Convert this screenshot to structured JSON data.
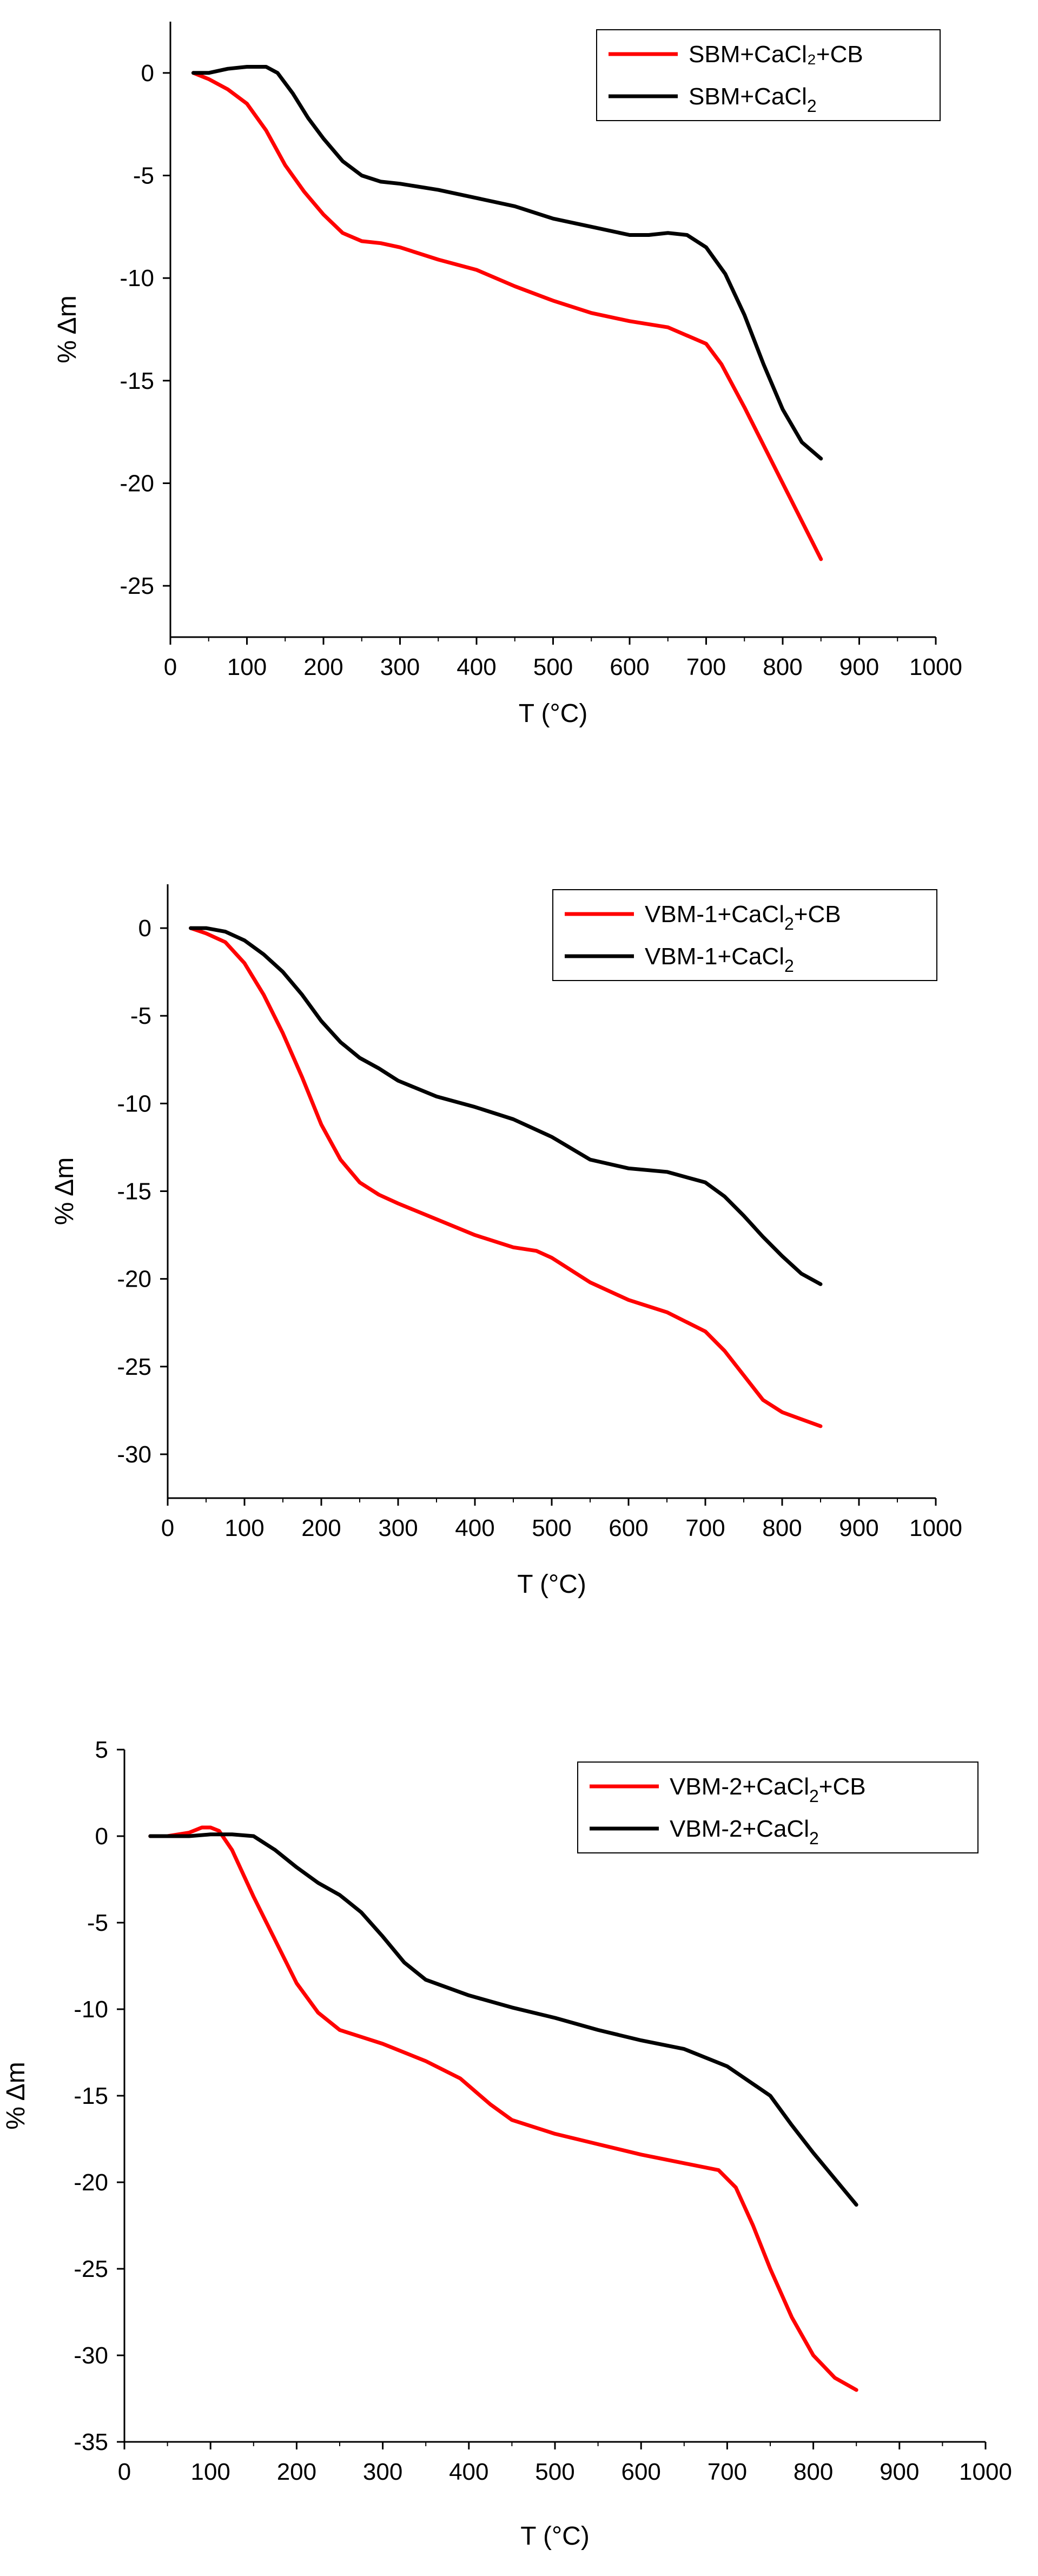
{
  "figure": {
    "panels": 3,
    "colors": {
      "red_series": "#ff0000",
      "black_series": "#000000"
    }
  },
  "chart_data": [
    {
      "type": "line",
      "title": "",
      "xlabel": "T (°C)",
      "ylabel": "% Δm",
      "xlim": [
        0,
        1000
      ],
      "ylim": [
        -27.5,
        2.5
      ],
      "xticks": [
        0,
        100,
        200,
        300,
        400,
        500,
        600,
        700,
        800,
        900,
        1000
      ],
      "xtick_labels": [
        "0",
        "100",
        "200",
        "300",
        "400",
        "500",
        "600",
        "700",
        "800",
        "900",
        "1000"
      ],
      "yticks": [
        0,
        -5,
        -10,
        -15,
        -20,
        -25
      ],
      "ytick_labels": [
        "0",
        "-5",
        "-10",
        "-15",
        "-20",
        "-25"
      ],
      "legend_position": "top-right",
      "grid": false,
      "series": [
        {
          "name": "SBM+CaCl₂+CB",
          "legend_main": "SBM+CaCl₂+CB",
          "legend_sub": "",
          "legend_tail": "",
          "color": "#ff0000",
          "x": [
            30,
            50,
            75,
            100,
            125,
            150,
            175,
            200,
            225,
            250,
            275,
            300,
            350,
            400,
            450,
            500,
            550,
            600,
            650,
            700,
            720,
            750,
            800,
            850
          ],
          "y": [
            0,
            -0.3,
            -0.8,
            -1.5,
            -2.8,
            -4.5,
            -5.8,
            -6.9,
            -7.8,
            -8.2,
            -8.3,
            -8.5,
            -9.1,
            -9.6,
            -10.4,
            -11.1,
            -11.7,
            -12.1,
            -12.4,
            -13.2,
            -14.2,
            -16.3,
            -20.0,
            -23.7
          ]
        },
        {
          "name": "SBM+CaCl2",
          "legend_main": "SBM+CaCl",
          "legend_sub": "2",
          "legend_tail": "",
          "color": "#000000",
          "x": [
            30,
            50,
            75,
            100,
            125,
            140,
            160,
            180,
            200,
            225,
            250,
            275,
            300,
            350,
            400,
            450,
            500,
            550,
            600,
            625,
            650,
            675,
            700,
            725,
            750,
            775,
            800,
            825,
            850
          ],
          "y": [
            0,
            0.0,
            0.2,
            0.3,
            0.3,
            0.0,
            -1.0,
            -2.2,
            -3.2,
            -4.3,
            -5.0,
            -5.3,
            -5.4,
            -5.7,
            -6.1,
            -6.5,
            -7.1,
            -7.5,
            -7.9,
            -7.9,
            -7.8,
            -7.9,
            -8.5,
            -9.8,
            -11.8,
            -14.2,
            -16.4,
            -18.0,
            -18.8
          ]
        }
      ]
    },
    {
      "type": "line",
      "title": "",
      "xlabel": "T (°C)",
      "ylabel": "% Δm",
      "xlim": [
        0,
        1000
      ],
      "ylim": [
        -32.5,
        2.5
      ],
      "xticks": [
        0,
        100,
        200,
        300,
        400,
        500,
        600,
        700,
        800,
        900,
        1000
      ],
      "xtick_labels": [
        "0",
        "100",
        "200",
        "300",
        "400",
        "500",
        "600",
        "700",
        "800",
        "900",
        "1000"
      ],
      "yticks": [
        0,
        -5,
        -10,
        -15,
        -20,
        -25,
        -30
      ],
      "ytick_labels": [
        "0",
        "-5",
        "-10",
        "-15",
        "-20",
        "-25",
        "-30"
      ],
      "legend_position": "top-right",
      "grid": false,
      "series": [
        {
          "name": "VBM-1+CaCl2+CB",
          "legend_main": "VBM-1+CaCl",
          "legend_sub": "2",
          "legend_tail": "+CB",
          "color": "#ff0000",
          "x": [
            30,
            50,
            75,
            100,
            125,
            150,
            175,
            200,
            225,
            250,
            275,
            300,
            350,
            400,
            450,
            480,
            500,
            550,
            600,
            650,
            700,
            725,
            750,
            775,
            800,
            825,
            850
          ],
          "y": [
            0,
            -0.3,
            -0.8,
            -2.0,
            -3.8,
            -6.0,
            -8.5,
            -11.2,
            -13.2,
            -14.5,
            -15.2,
            -15.7,
            -16.6,
            -17.5,
            -18.2,
            -18.4,
            -18.8,
            -20.2,
            -21.2,
            -21.9,
            -23.0,
            -24.1,
            -25.5,
            -26.9,
            -27.6,
            -28.0,
            -28.4
          ]
        },
        {
          "name": "VBM-1+CaCl2",
          "legend_main": "VBM-1+CaCl",
          "legend_sub": "2",
          "legend_tail": "",
          "color": "#000000",
          "x": [
            30,
            50,
            75,
            100,
            125,
            150,
            175,
            200,
            225,
            250,
            275,
            300,
            350,
            400,
            450,
            500,
            550,
            600,
            650,
            700,
            725,
            750,
            775,
            800,
            825,
            850
          ],
          "y": [
            0,
            0.0,
            -0.2,
            -0.7,
            -1.5,
            -2.5,
            -3.8,
            -5.3,
            -6.5,
            -7.4,
            -8.0,
            -8.7,
            -9.6,
            -10.2,
            -10.9,
            -11.9,
            -13.2,
            -13.7,
            -13.9,
            -14.5,
            -15.3,
            -16.4,
            -17.6,
            -18.7,
            -19.7,
            -20.3
          ]
        }
      ]
    },
    {
      "type": "line",
      "title": "",
      "xlabel": "T (°C)",
      "ylabel": "% Δm",
      "xlim": [
        0,
        1000
      ],
      "ylim": [
        -35,
        5
      ],
      "xticks": [
        0,
        100,
        200,
        300,
        400,
        500,
        600,
        700,
        800,
        900,
        1000
      ],
      "xtick_labels": [
        "0",
        "100",
        "200",
        "300",
        "400",
        "500",
        "600",
        "700",
        "800",
        "900",
        "1000"
      ],
      "yticks": [
        5,
        0,
        -5,
        -10,
        -15,
        -20,
        -25,
        -30,
        -35
      ],
      "ytick_labels": [
        "5",
        "0",
        "-5",
        "-10",
        "-15",
        "-20",
        "-25",
        "-30",
        "-35"
      ],
      "legend_position": "top-right",
      "grid": false,
      "series": [
        {
          "name": "VBM-2+CaCl2+CB",
          "legend_main": "VBM-2+CaCl",
          "legend_sub": "2",
          "legend_tail": "+CB",
          "color": "#ff0000",
          "x": [
            30,
            50,
            75,
            90,
            100,
            110,
            125,
            150,
            175,
            200,
            225,
            250,
            275,
            300,
            350,
            390,
            425,
            450,
            500,
            550,
            600,
            650,
            690,
            710,
            730,
            750,
            775,
            800,
            825,
            850
          ],
          "y": [
            0,
            0.0,
            0.2,
            0.5,
            0.5,
            0.3,
            -0.8,
            -3.5,
            -6.0,
            -8.5,
            -10.2,
            -11.2,
            -11.6,
            -12.0,
            -13.0,
            -14.0,
            -15.5,
            -16.4,
            -17.2,
            -17.8,
            -18.4,
            -18.9,
            -19.3,
            -20.3,
            -22.5,
            -25.0,
            -27.8,
            -30.0,
            -31.3,
            -32.0
          ]
        },
        {
          "name": "VBM-2+CaCl2",
          "legend_main": "VBM-2+CaCl",
          "legend_sub": "2",
          "legend_tail": "",
          "color": "#000000",
          "x": [
            30,
            50,
            75,
            100,
            125,
            150,
            175,
            200,
            225,
            250,
            275,
            300,
            325,
            350,
            400,
            450,
            500,
            550,
            600,
            650,
            700,
            750,
            775,
            800,
            825,
            850
          ],
          "y": [
            0,
            0.0,
            0.0,
            0.1,
            0.1,
            0.0,
            -0.8,
            -1.8,
            -2.7,
            -3.4,
            -4.4,
            -5.8,
            -7.3,
            -8.3,
            -9.2,
            -9.9,
            -10.5,
            -11.2,
            -11.8,
            -12.3,
            -13.3,
            -15.0,
            -16.7,
            -18.3,
            -19.8,
            -21.3
          ]
        }
      ]
    }
  ]
}
